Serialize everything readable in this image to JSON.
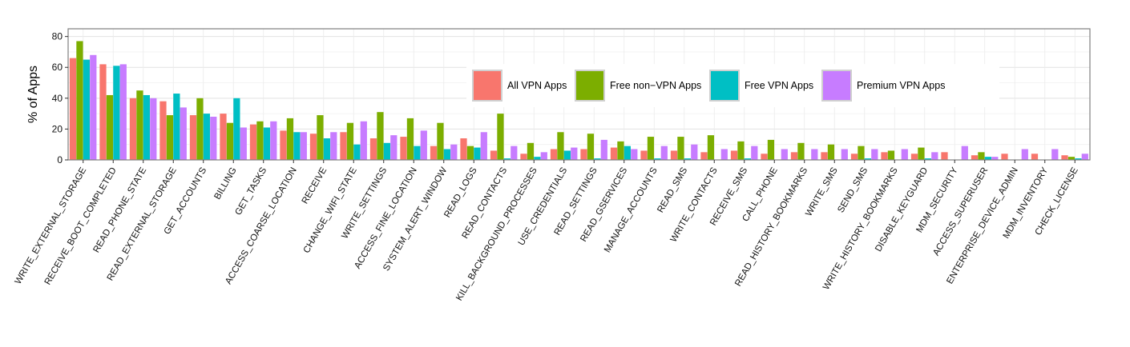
{
  "chart_data": {
    "type": "bar",
    "title": "",
    "xlabel": "",
    "ylabel": "% of Apps",
    "ylim": [
      0,
      85
    ],
    "yticks": [
      0,
      20,
      40,
      60,
      80
    ],
    "grid": true,
    "legend_position": "top-right",
    "categories": [
      "WRITE_EXTERNAL_STORAGE",
      "RECEIVE_BOOT_COMPLETED",
      "READ_PHONE_STATE",
      "READ_EXTERNAL_STORAGE",
      "GET_ACCOUNTS",
      "BILLING",
      "GET_TASKS",
      "ACCESS_COARSE_LOCATION",
      "RECEIVE",
      "CHANGE_WIFI_STATE",
      "WRITE_SETTINGS",
      "ACCESS_FINE_LOCATION",
      "SYSTEM_ALERT_WINDOW",
      "READ_LOGS",
      "READ_CONTACTS",
      "KILL_BACKGROUND_PROCESSES",
      "USE_CREDENTIALS",
      "READ_SETTINGS",
      "READ_GSERVICES",
      "MANAGE_ACCOUNTS",
      "READ_SMS",
      "WRITE_CONTACTS",
      "RECEIVE_SMS",
      "CALL_PHONE",
      "READ_HISTORY_BOOKMARKS",
      "WRITE_SMS",
      "SEND_SMS",
      "WRITE_HISTORY_BOOKMARKS",
      "DISABLE_KEYGUARD",
      "MDM_SECURITY",
      "ACCESS_SUPERUSER",
      "ENTERPRISE_DEVICE_ADMIN",
      "MDM_INVENTORY",
      "CHECK_LICENSE"
    ],
    "series": [
      {
        "name": "All VPN Apps",
        "color": "#F8766D",
        "values": [
          66,
          62,
          40,
          38,
          29,
          30,
          23,
          19,
          17,
          18,
          14,
          15,
          9,
          14,
          6,
          4,
          7,
          7,
          8,
          6,
          6,
          5,
          6,
          4,
          5,
          5,
          4,
          5,
          4,
          5,
          3,
          4,
          4,
          3
        ]
      },
      {
        "name": "Free non−VPN Apps",
        "color": "#7CAE00",
        "values": [
          77,
          42,
          45,
          29,
          40,
          24,
          25,
          27,
          29,
          24,
          31,
          27,
          24,
          9,
          30,
          11,
          18,
          17,
          12,
          15,
          15,
          16,
          12,
          13,
          11,
          10,
          9,
          6,
          8,
          0,
          5,
          0,
          0,
          2
        ]
      },
      {
        "name": "Free VPN Apps",
        "color": "#00BFC4",
        "values": [
          65,
          61,
          42,
          43,
          30,
          40,
          21,
          18,
          14,
          10,
          11,
          9,
          7,
          8,
          1,
          2,
          6,
          1,
          9,
          1,
          1,
          0,
          1,
          0,
          0,
          0,
          1,
          0,
          1,
          0,
          2,
          0,
          0,
          1
        ]
      },
      {
        "name": "Premium VPN Apps",
        "color": "#C77CFF",
        "values": [
          68,
          62,
          40,
          34,
          28,
          21,
          25,
          18,
          18,
          25,
          16,
          19,
          10,
          18,
          9,
          5,
          8,
          13,
          7,
          9,
          10,
          7,
          9,
          7,
          7,
          7,
          7,
          7,
          5,
          9,
          2,
          7,
          7,
          4
        ]
      }
    ]
  }
}
